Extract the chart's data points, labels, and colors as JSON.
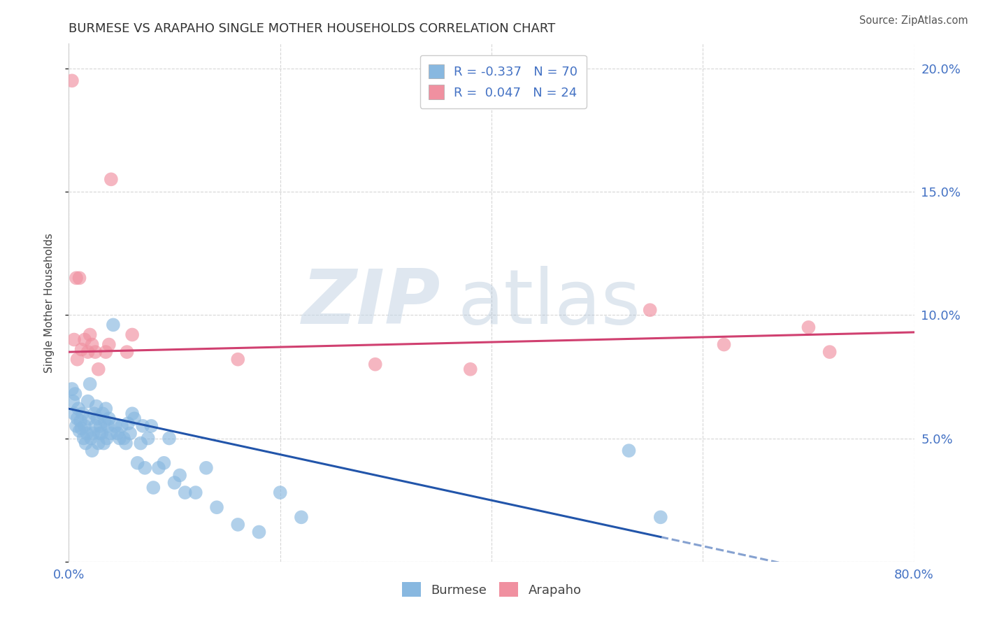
{
  "title": "BURMESE VS ARAPAHO SINGLE MOTHER HOUSEHOLDS CORRELATION CHART",
  "source": "Source: ZipAtlas.com",
  "ylabel": "Single Mother Households",
  "xlim": [
    0.0,
    0.8
  ],
  "ylim": [
    0.0,
    0.21
  ],
  "burmese_color": "#88b8e0",
  "arapaho_color": "#f090a0",
  "burmese_line_color": "#2255aa",
  "arapaho_line_color": "#d04070",
  "legend_blue_label": "R = -0.337   N = 70",
  "legend_pink_label": "R =  0.047   N = 24",
  "burmese_x": [
    0.003,
    0.004,
    0.005,
    0.006,
    0.007,
    0.008,
    0.009,
    0.01,
    0.011,
    0.012,
    0.013,
    0.014,
    0.015,
    0.016,
    0.017,
    0.018,
    0.019,
    0.02,
    0.021,
    0.022,
    0.023,
    0.024,
    0.025,
    0.026,
    0.027,
    0.028,
    0.029,
    0.03,
    0.031,
    0.032,
    0.033,
    0.034,
    0.035,
    0.036,
    0.037,
    0.038,
    0.04,
    0.042,
    0.044,
    0.046,
    0.048,
    0.05,
    0.052,
    0.054,
    0.056,
    0.058,
    0.06,
    0.062,
    0.065,
    0.068,
    0.07,
    0.072,
    0.075,
    0.078,
    0.08,
    0.085,
    0.09,
    0.095,
    0.1,
    0.105,
    0.11,
    0.12,
    0.13,
    0.14,
    0.16,
    0.18,
    0.2,
    0.22,
    0.53,
    0.56
  ],
  "burmese_y": [
    0.07,
    0.065,
    0.06,
    0.068,
    0.055,
    0.058,
    0.062,
    0.053,
    0.057,
    0.054,
    0.06,
    0.05,
    0.055,
    0.048,
    0.052,
    0.065,
    0.058,
    0.072,
    0.05,
    0.045,
    0.052,
    0.06,
    0.055,
    0.063,
    0.058,
    0.048,
    0.052,
    0.055,
    0.052,
    0.06,
    0.048,
    0.057,
    0.062,
    0.05,
    0.055,
    0.058,
    0.052,
    0.096,
    0.055,
    0.052,
    0.05,
    0.055,
    0.05,
    0.048,
    0.056,
    0.052,
    0.06,
    0.058,
    0.04,
    0.048,
    0.055,
    0.038,
    0.05,
    0.055,
    0.03,
    0.038,
    0.04,
    0.05,
    0.032,
    0.035,
    0.028,
    0.028,
    0.038,
    0.022,
    0.015,
    0.012,
    0.028,
    0.018,
    0.045,
    0.018
  ],
  "arapaho_x": [
    0.003,
    0.005,
    0.007,
    0.008,
    0.01,
    0.012,
    0.015,
    0.018,
    0.02,
    0.022,
    0.025,
    0.028,
    0.035,
    0.038,
    0.04,
    0.055,
    0.06,
    0.16,
    0.29,
    0.38,
    0.55,
    0.62,
    0.7,
    0.72
  ],
  "arapaho_y": [
    0.195,
    0.09,
    0.115,
    0.082,
    0.115,
    0.086,
    0.09,
    0.085,
    0.092,
    0.088,
    0.085,
    0.078,
    0.085,
    0.088,
    0.155,
    0.085,
    0.092,
    0.082,
    0.08,
    0.078,
    0.102,
    0.088,
    0.095,
    0.085
  ]
}
